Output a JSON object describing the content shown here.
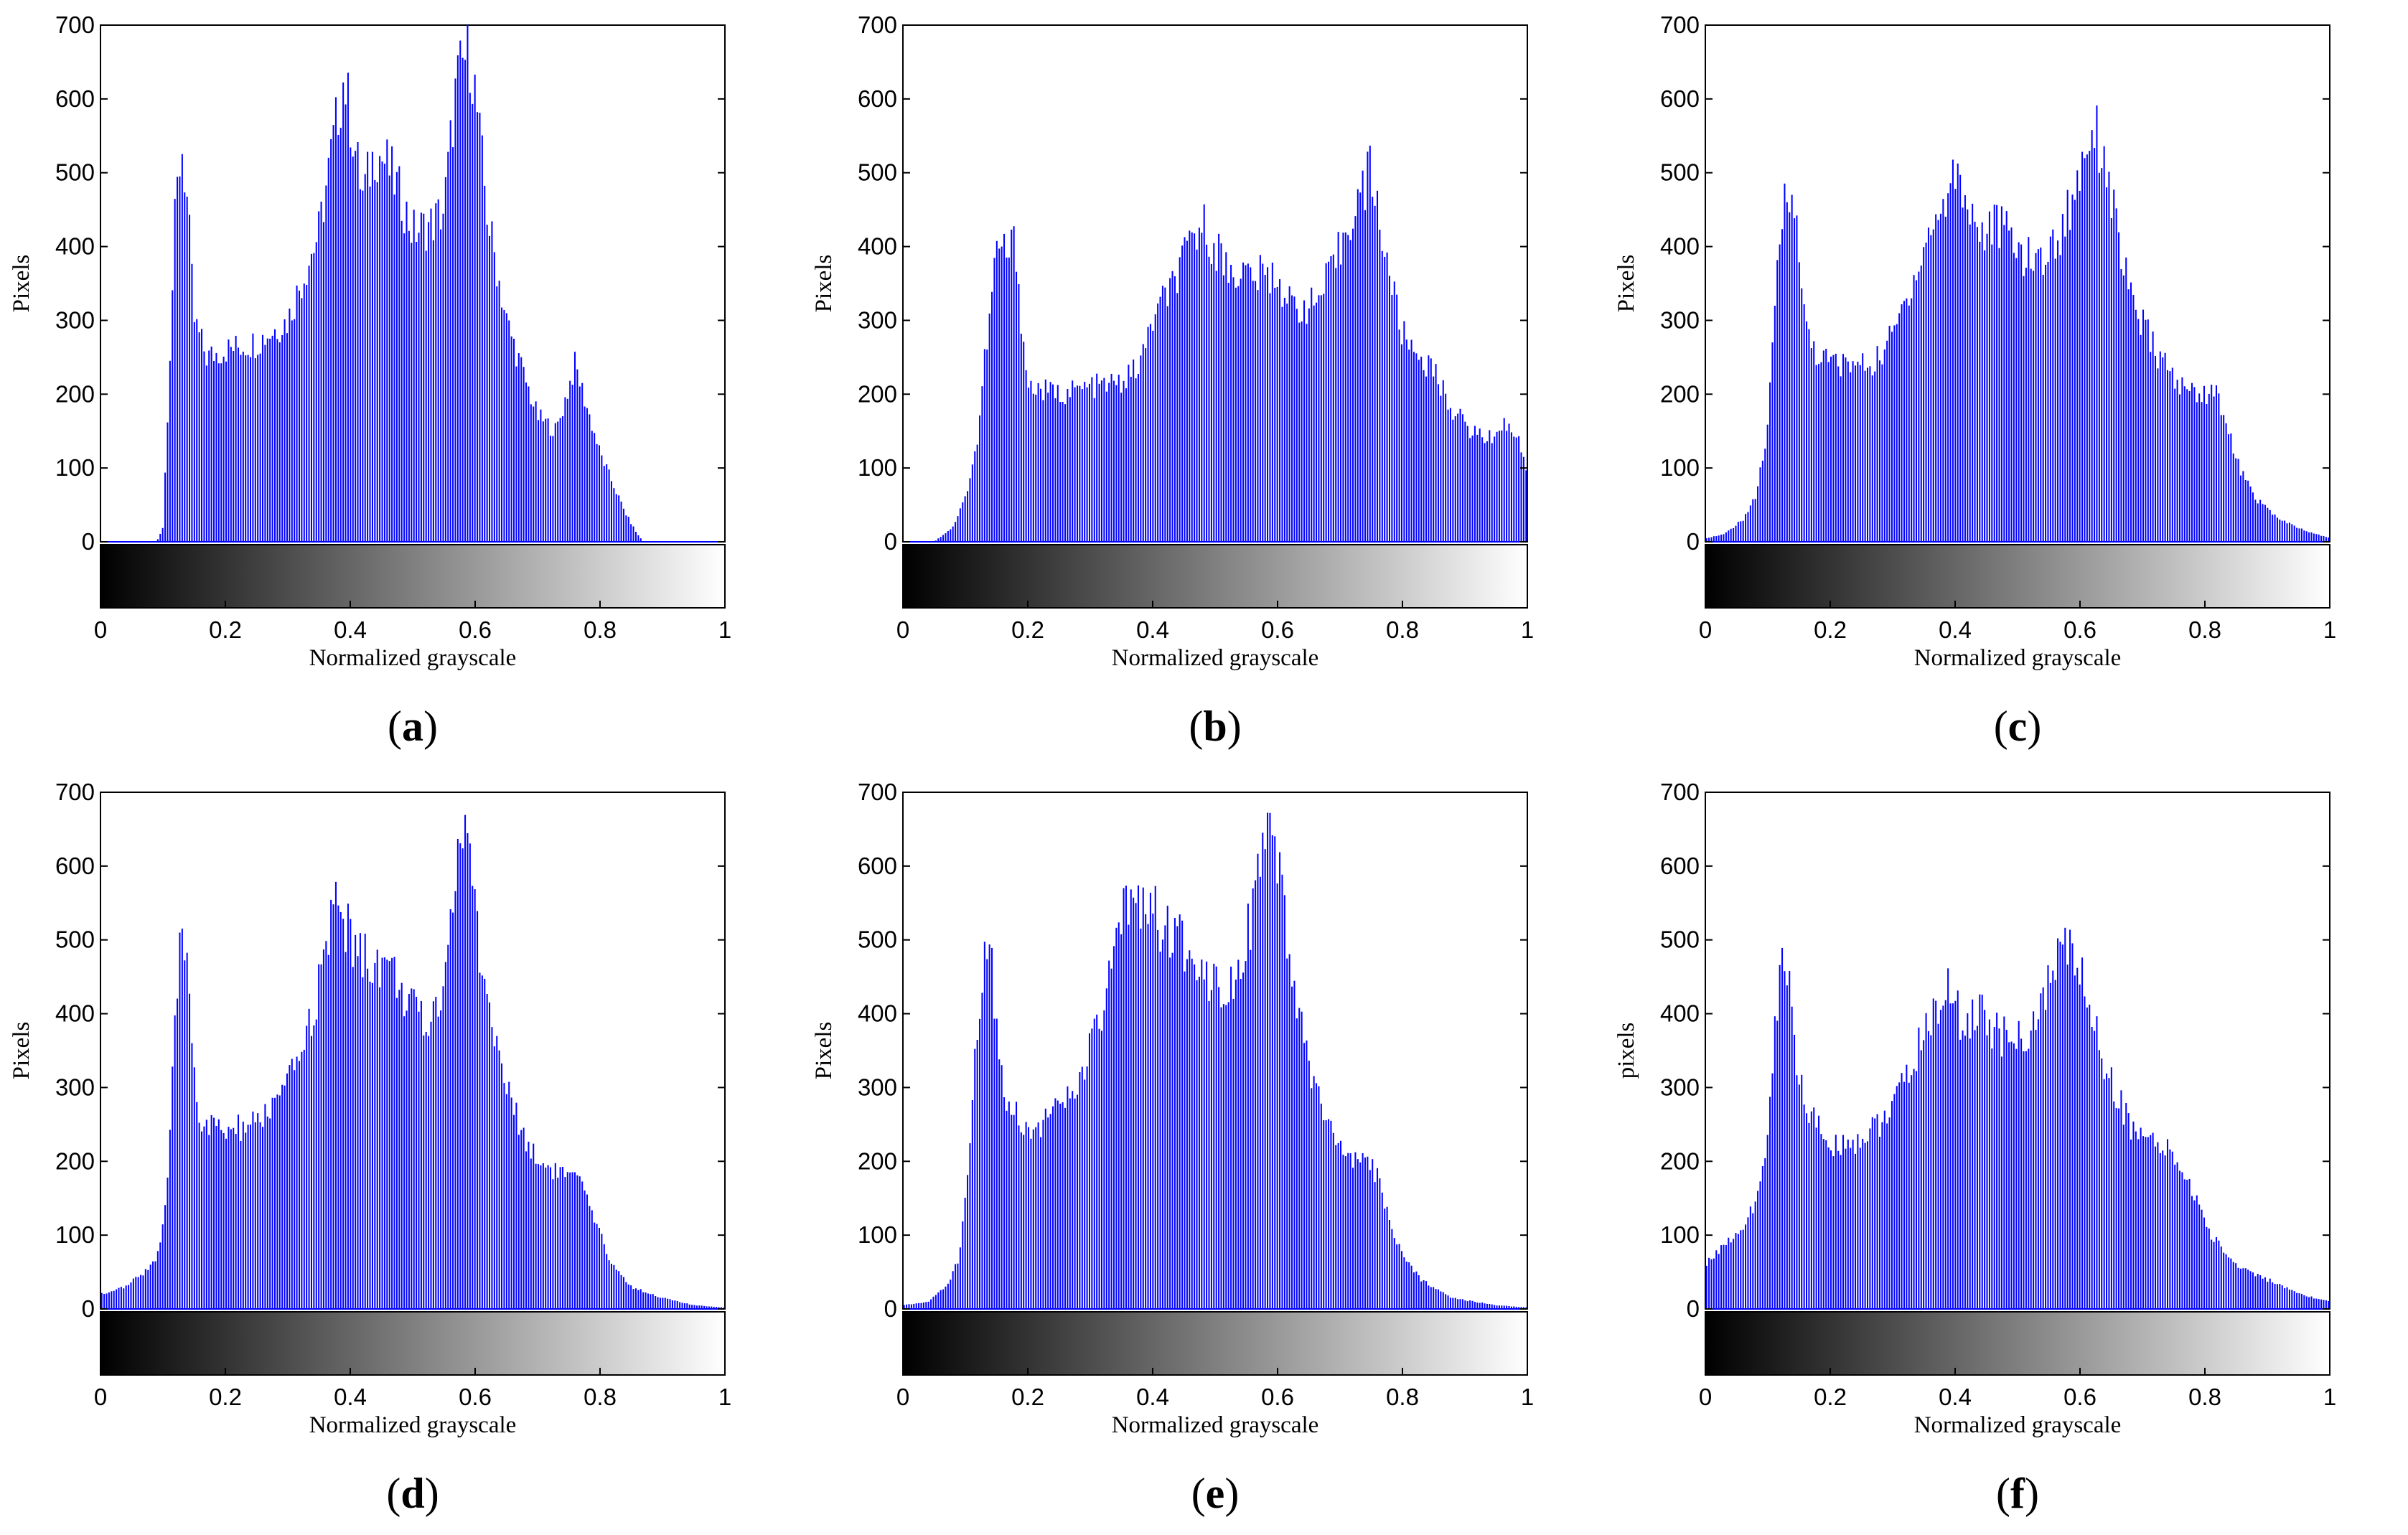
{
  "style": {
    "bar_color": "#0000ff",
    "axis_color": "#000000",
    "background": "#ffffff"
  },
  "chart_data": [
    {
      "type": "bar",
      "panel": "a",
      "caption_open": "(",
      "caption_letter": "a",
      "caption_close": ")",
      "xlabel": "Normalized grayscale",
      "ylabel": "Pixels",
      "xlim": [
        0,
        1
      ],
      "ylim": [
        0,
        700
      ],
      "xticks": [
        "0",
        "0.2",
        "0.4",
        "0.6",
        "0.8",
        "1"
      ],
      "yticks": [
        "0",
        "100",
        "200",
        "300",
        "400",
        "500",
        "600",
        "700"
      ],
      "colorbar": "grayscale",
      "profile": [
        [
          0,
          0
        ],
        [
          0.09,
          0
        ],
        [
          0.1,
          20
        ],
        [
          0.11,
          230
        ],
        [
          0.12,
          450
        ],
        [
          0.13,
          540
        ],
        [
          0.14,
          450
        ],
        [
          0.15,
          300
        ],
        [
          0.17,
          250
        ],
        [
          0.2,
          260
        ],
        [
          0.25,
          270
        ],
        [
          0.3,
          300
        ],
        [
          0.35,
          420
        ],
        [
          0.38,
          580
        ],
        [
          0.39,
          630
        ],
        [
          0.41,
          520
        ],
        [
          0.42,
          470
        ],
        [
          0.44,
          530
        ],
        [
          0.46,
          510
        ],
        [
          0.48,
          470
        ],
        [
          0.5,
          420
        ],
        [
          0.53,
          430
        ],
        [
          0.55,
          450
        ],
        [
          0.57,
          620
        ],
        [
          0.59,
          670
        ],
        [
          0.6,
          610
        ],
        [
          0.62,
          440
        ],
        [
          0.65,
          300
        ],
        [
          0.68,
          220
        ],
        [
          0.7,
          170
        ],
        [
          0.73,
          150
        ],
        [
          0.75,
          210
        ],
        [
          0.76,
          240
        ],
        [
          0.78,
          180
        ],
        [
          0.8,
          120
        ],
        [
          0.82,
          80
        ],
        [
          0.84,
          40
        ],
        [
          0.86,
          10
        ],
        [
          0.87,
          0
        ],
        [
          1,
          0
        ]
      ]
    },
    {
      "type": "bar",
      "panel": "b",
      "caption_open": "(",
      "caption_letter": "b",
      "caption_close": ")",
      "xlabel": "Normalized grayscale",
      "ylabel": "Pixels",
      "xlim": [
        0,
        1
      ],
      "ylim": [
        0,
        700
      ],
      "xticks": [
        "0",
        "0.2",
        "0.4",
        "0.6",
        "0.8",
        "1"
      ],
      "yticks": [
        "0",
        "100",
        "200",
        "300",
        "400",
        "500",
        "600",
        "700"
      ],
      "colorbar": "grayscale",
      "profile": [
        [
          0,
          0
        ],
        [
          0.05,
          0
        ],
        [
          0.08,
          20
        ],
        [
          0.1,
          60
        ],
        [
          0.12,
          140
        ],
        [
          0.13,
          240
        ],
        [
          0.14,
          310
        ],
        [
          0.15,
          400
        ],
        [
          0.17,
          390
        ],
        [
          0.18,
          410
        ],
        [
          0.19,
          300
        ],
        [
          0.2,
          210
        ],
        [
          0.25,
          200
        ],
        [
          0.3,
          210
        ],
        [
          0.35,
          215
        ],
        [
          0.38,
          240
        ],
        [
          0.4,
          300
        ],
        [
          0.44,
          360
        ],
        [
          0.47,
          420
        ],
        [
          0.48,
          430
        ],
        [
          0.5,
          400
        ],
        [
          0.52,
          370
        ],
        [
          0.56,
          360
        ],
        [
          0.6,
          360
        ],
        [
          0.62,
          320
        ],
        [
          0.66,
          320
        ],
        [
          0.69,
          370
        ],
        [
          0.72,
          450
        ],
        [
          0.74,
          480
        ],
        [
          0.75,
          510
        ],
        [
          0.76,
          450
        ],
        [
          0.78,
          360
        ],
        [
          0.8,
          280
        ],
        [
          0.85,
          230
        ],
        [
          0.88,
          180
        ],
        [
          0.91,
          150
        ],
        [
          0.94,
          140
        ],
        [
          0.96,
          160
        ],
        [
          0.98,
          150
        ],
        [
          1,
          100
        ]
      ]
    },
    {
      "type": "bar",
      "panel": "c",
      "caption_open": "(",
      "caption_letter": "c",
      "caption_close": ")",
      "xlabel": "Normalized grayscale",
      "ylabel": "Pixels",
      "xlim": [
        0,
        1
      ],
      "ylim": [
        0,
        700
      ],
      "xticks": [
        "0",
        "0.2",
        "0.4",
        "0.6",
        "0.8",
        "1"
      ],
      "yticks": [
        "0",
        "100",
        "200",
        "300",
        "400",
        "500",
        "600",
        "700"
      ],
      "colorbar": "grayscale",
      "profile": [
        [
          0,
          5
        ],
        [
          0.03,
          10
        ],
        [
          0.06,
          30
        ],
        [
          0.08,
          60
        ],
        [
          0.1,
          150
        ],
        [
          0.11,
          300
        ],
        [
          0.12,
          420
        ],
        [
          0.13,
          490
        ],
        [
          0.14,
          480
        ],
        [
          0.15,
          380
        ],
        [
          0.16,
          300
        ],
        [
          0.18,
          250
        ],
        [
          0.22,
          240
        ],
        [
          0.27,
          240
        ],
        [
          0.3,
          280
        ],
        [
          0.33,
          350
        ],
        [
          0.36,
          420
        ],
        [
          0.39,
          470
        ],
        [
          0.4,
          510
        ],
        [
          0.42,
          460
        ],
        [
          0.44,
          420
        ],
        [
          0.47,
          430
        ],
        [
          0.5,
          400
        ],
        [
          0.52,
          380
        ],
        [
          0.55,
          390
        ],
        [
          0.57,
          420
        ],
        [
          0.59,
          470
        ],
        [
          0.61,
          540
        ],
        [
          0.62,
          570
        ],
        [
          0.64,
          520
        ],
        [
          0.66,
          420
        ],
        [
          0.68,
          330
        ],
        [
          0.72,
          260
        ],
        [
          0.76,
          210
        ],
        [
          0.8,
          200
        ],
        [
          0.81,
          210
        ],
        [
          0.83,
          180
        ],
        [
          0.85,
          110
        ],
        [
          0.88,
          60
        ],
        [
          0.92,
          30
        ],
        [
          0.96,
          15
        ],
        [
          1,
          5
        ]
      ]
    },
    {
      "type": "bar",
      "panel": "d",
      "caption_open": "(",
      "caption_letter": "d",
      "caption_close": ")",
      "xlabel": "Normalized grayscale",
      "ylabel": "Pixels",
      "xlim": [
        0,
        1
      ],
      "ylim": [
        0,
        700
      ],
      "xticks": [
        "0",
        "0.2",
        "0.4",
        "0.6",
        "0.8",
        "1"
      ],
      "yticks": [
        "0",
        "100",
        "200",
        "300",
        "400",
        "500",
        "600",
        "700"
      ],
      "colorbar": "grayscale",
      "profile": [
        [
          0,
          20
        ],
        [
          0.04,
          30
        ],
        [
          0.07,
          50
        ],
        [
          0.09,
          70
        ],
        [
          0.1,
          110
        ],
        [
          0.11,
          200
        ],
        [
          0.12,
          400
        ],
        [
          0.13,
          510
        ],
        [
          0.14,
          470
        ],
        [
          0.15,
          330
        ],
        [
          0.16,
          250
        ],
        [
          0.2,
          240
        ],
        [
          0.25,
          250
        ],
        [
          0.3,
          300
        ],
        [
          0.34,
          400
        ],
        [
          0.37,
          520
        ],
        [
          0.38,
          560
        ],
        [
          0.4,
          500
        ],
        [
          0.43,
          470
        ],
        [
          0.46,
          470
        ],
        [
          0.49,
          420
        ],
        [
          0.52,
          380
        ],
        [
          0.54,
          410
        ],
        [
          0.56,
          520
        ],
        [
          0.57,
          600
        ],
        [
          0.58,
          650
        ],
        [
          0.59,
          620
        ],
        [
          0.61,
          470
        ],
        [
          0.64,
          330
        ],
        [
          0.67,
          250
        ],
        [
          0.7,
          200
        ],
        [
          0.75,
          180
        ],
        [
          0.77,
          170
        ],
        [
          0.79,
          120
        ],
        [
          0.82,
          60
        ],
        [
          0.85,
          30
        ],
        [
          0.9,
          15
        ],
        [
          0.95,
          5
        ],
        [
          1,
          2
        ]
      ]
    },
    {
      "type": "bar",
      "panel": "e",
      "caption_open": "(",
      "caption_letter": "e",
      "caption_close": ")",
      "xlabel": "Normalized grayscale",
      "ylabel": "Pixels",
      "xlim": [
        0,
        1
      ],
      "ylim": [
        0,
        700
      ],
      "xticks": [
        "0",
        "0.2",
        "0.4",
        "0.6",
        "0.8",
        "1"
      ],
      "yticks": [
        "0",
        "100",
        "200",
        "300",
        "400",
        "500",
        "600",
        "700"
      ],
      "colorbar": "grayscale",
      "profile": [
        [
          0,
          5
        ],
        [
          0.04,
          10
        ],
        [
          0.07,
          30
        ],
        [
          0.09,
          70
        ],
        [
          0.1,
          150
        ],
        [
          0.11,
          250
        ],
        [
          0.12,
          400
        ],
        [
          0.13,
          480
        ],
        [
          0.14,
          510
        ],
        [
          0.15,
          380
        ],
        [
          0.16,
          300
        ],
        [
          0.2,
          240
        ],
        [
          0.25,
          270
        ],
        [
          0.28,
          300
        ],
        [
          0.32,
          400
        ],
        [
          0.35,
          520
        ],
        [
          0.37,
          570
        ],
        [
          0.4,
          540
        ],
        [
          0.43,
          500
        ],
        [
          0.46,
          490
        ],
        [
          0.49,
          450
        ],
        [
          0.52,
          440
        ],
        [
          0.54,
          470
        ],
        [
          0.56,
          540
        ],
        [
          0.58,
          620
        ],
        [
          0.59,
          640
        ],
        [
          0.6,
          600
        ],
        [
          0.62,
          460
        ],
        [
          0.65,
          330
        ],
        [
          0.68,
          250
        ],
        [
          0.71,
          200
        ],
        [
          0.74,
          200
        ],
        [
          0.76,
          180
        ],
        [
          0.78,
          120
        ],
        [
          0.8,
          70
        ],
        [
          0.83,
          40
        ],
        [
          0.88,
          15
        ],
        [
          0.95,
          5
        ],
        [
          1,
          2
        ]
      ]
    },
    {
      "type": "bar",
      "panel": "f",
      "caption_open": "(",
      "caption_letter": "f",
      "caption_close": ")",
      "xlabel": "Normalized grayscale",
      "ylabel": "pixels",
      "xlim": [
        0,
        1
      ],
      "ylim": [
        0,
        700
      ],
      "xticks": [
        "0",
        "0.2",
        "0.4",
        "0.6",
        "0.8",
        "1"
      ],
      "yticks": [
        "0",
        "100",
        "200",
        "300",
        "400",
        "500",
        "600",
        "700"
      ],
      "colorbar": "grayscale",
      "profile": [
        [
          0,
          60
        ],
        [
          0.02,
          80
        ],
        [
          0.05,
          100
        ],
        [
          0.08,
          140
        ],
        [
          0.1,
          230
        ],
        [
          0.11,
          360
        ],
        [
          0.12,
          460
        ],
        [
          0.13,
          470
        ],
        [
          0.14,
          400
        ],
        [
          0.15,
          310
        ],
        [
          0.17,
          260
        ],
        [
          0.2,
          220
        ],
        [
          0.25,
          230
        ],
        [
          0.3,
          270
        ],
        [
          0.34,
          350
        ],
        [
          0.37,
          410
        ],
        [
          0.39,
          430
        ],
        [
          0.41,
          390
        ],
        [
          0.44,
          400
        ],
        [
          0.47,
          370
        ],
        [
          0.5,
          360
        ],
        [
          0.53,
          390
        ],
        [
          0.56,
          460
        ],
        [
          0.57,
          500
        ],
        [
          0.59,
          480
        ],
        [
          0.61,
          430
        ],
        [
          0.64,
          330
        ],
        [
          0.68,
          250
        ],
        [
          0.72,
          220
        ],
        [
          0.75,
          210
        ],
        [
          0.78,
          160
        ],
        [
          0.81,
          100
        ],
        [
          0.85,
          60
        ],
        [
          0.9,
          40
        ],
        [
          0.95,
          20
        ],
        [
          1,
          10
        ]
      ]
    }
  ]
}
